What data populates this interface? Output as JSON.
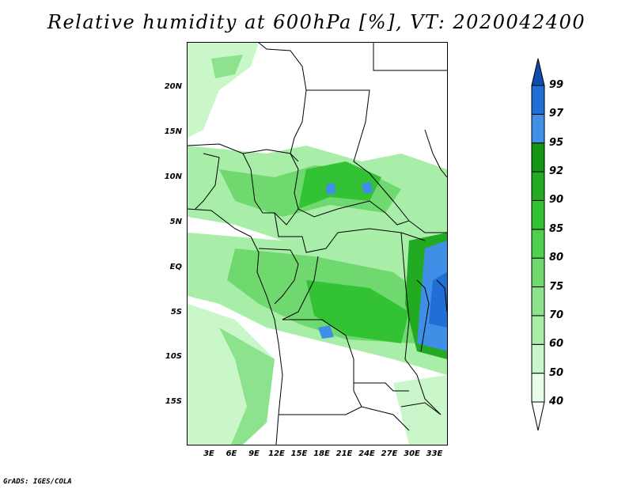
{
  "title": "Relative humidity at 600hPa [%], VT: 2020042400",
  "credit": "GrADS: IGES/COLA",
  "lat_ticks": [
    "20N",
    "15N",
    "10N",
    "5N",
    "EQ",
    "5S",
    "10S",
    "15S"
  ],
  "lon_ticks": [
    "3E",
    "6E",
    "9E",
    "12E",
    "15E",
    "18E",
    "21E",
    "24E",
    "27E",
    "30E",
    "33E"
  ],
  "colorbar": {
    "levels": [
      "40",
      "50",
      "60",
      "70",
      "75",
      "80",
      "85",
      "90",
      "92",
      "95",
      "97",
      "99"
    ],
    "colors": [
      "#ffffff",
      "#e6ffe6",
      "#c9f7c9",
      "#a8eea8",
      "#8de38d",
      "#6fd96f",
      "#4fd04f",
      "#33c233",
      "#22aa22",
      "#129512",
      "#3f8fe6",
      "#1f6fd6",
      "#0d4fb0"
    ]
  },
  "colors": {
    "land": "#ffffff",
    "borders": "#000000"
  }
}
